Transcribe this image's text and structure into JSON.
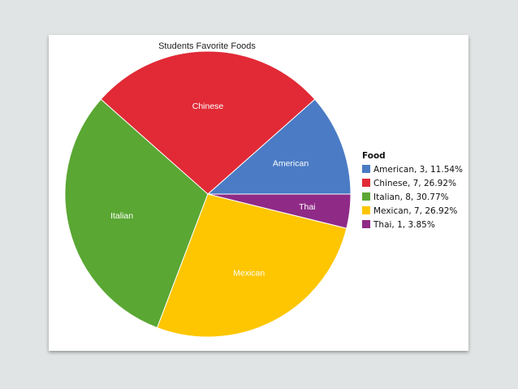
{
  "chart_data": {
    "type": "pie",
    "title": "Students Favorite Foods",
    "legend_title": "Food",
    "legend_position": "right",
    "start_angle_deg": 0,
    "direction": "counterclockwise",
    "slices": [
      {
        "label": "American",
        "value": 3,
        "percent": "11.54%",
        "color": "#4a7bc4",
        "legend": "American, 3, 11.54%"
      },
      {
        "label": "Chinese",
        "value": 7,
        "percent": "26.92%",
        "color": "#e12a36",
        "legend": "Chinese, 7, 26.92%"
      },
      {
        "label": "Italian",
        "value": 8,
        "percent": "30.77%",
        "color": "#5aa733",
        "legend": "Italian, 8, 30.77%"
      },
      {
        "label": "Mexican",
        "value": 7,
        "percent": "26.92%",
        "color": "#fdc600",
        "legend": "Mexican, 7, 26.92%"
      },
      {
        "label": "Thai",
        "value": 1,
        "percent": "3.85%",
        "color": "#8f2a87",
        "legend": "Thai, 1, 3.85%"
      }
    ]
  }
}
